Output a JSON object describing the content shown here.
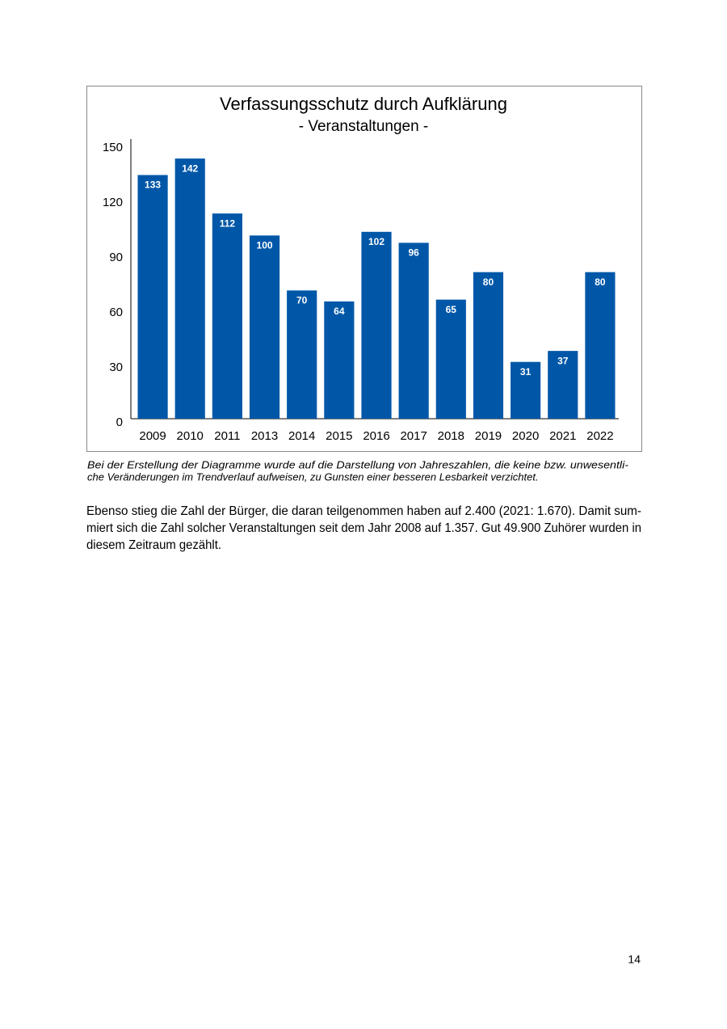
{
  "chart_data": {
    "type": "bar",
    "title": "Verfassungsschutz durch Aufklärung",
    "subtitle": "- Veranstaltungen -",
    "categories": [
      "2009",
      "2010",
      "2011",
      "2013",
      "2014",
      "2015",
      "2016",
      "2017",
      "2018",
      "2019",
      "2020",
      "2021",
      "2022"
    ],
    "values": [
      133,
      142,
      112,
      100,
      70,
      64,
      102,
      96,
      65,
      80,
      31,
      37,
      80
    ],
    "color": "#0057a8",
    "ylim": [
      0,
      150
    ],
    "yticks": [
      0,
      30,
      60,
      90,
      120,
      150
    ],
    "grid": false
  },
  "caption": [
    "Bei der Erstellung der Diagramme wurde auf die Darstellung von Jahreszahlen, die keine bzw. unwesentli-",
    "che Veränderungen im Trendverlauf aufweisen, zu Gunsten einer besseren Lesbarkeit verzichtet."
  ],
  "paragraph": [
    "Ebenso stieg die Zahl der Bürger, die daran teilgenommen haben auf 2.400 (2021: 1.670). Damit sum-",
    "miert sich die Zahl solcher Veranstaltungen seit dem Jahr 2008 auf 1.357. Gut 49.900 Zuhörer wurden in",
    "diesem Zeitraum gezählt."
  ],
  "page_number": "14"
}
